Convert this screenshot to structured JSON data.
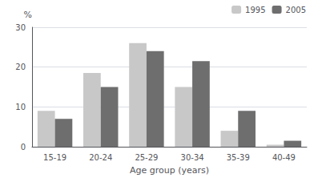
{
  "chart_data": {
    "type": "bar",
    "categories": [
      "15-19",
      "20-24",
      "25-29",
      "30-34",
      "35-39",
      "40-49"
    ],
    "series": [
      {
        "name": "1995",
        "color": "#c8c8c8",
        "values": [
          9.0,
          18.5,
          26.0,
          15.0,
          4.0,
          0.5
        ]
      },
      {
        "name": "2005",
        "color": "#6e6e6e",
        "values": [
          7.0,
          15.0,
          24.0,
          21.5,
          9.0,
          1.5
        ]
      }
    ],
    "xlabel": "Age group (years)",
    "ylabel": "%",
    "ylim": [
      0,
      30
    ],
    "yticks": [
      0,
      10,
      20,
      30
    ],
    "grid": true,
    "legend": "upper right"
  }
}
